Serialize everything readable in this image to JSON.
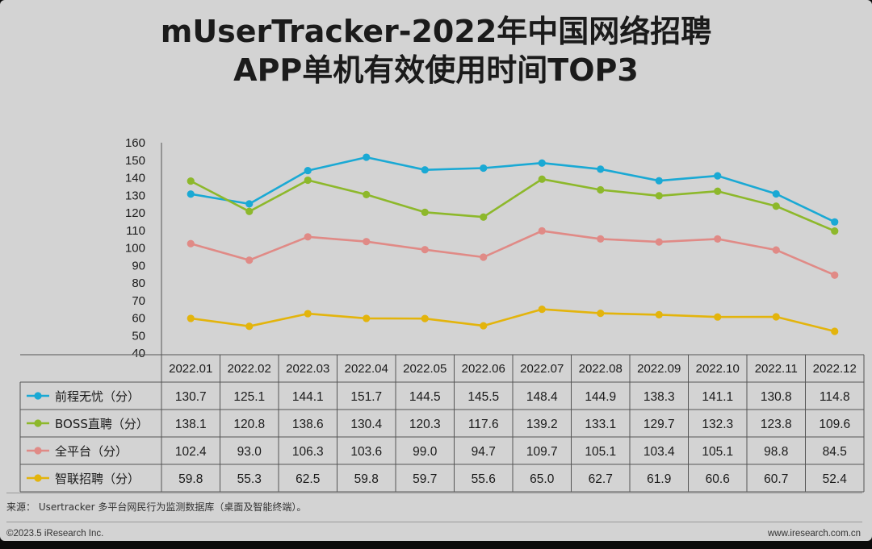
{
  "title_line1": "mUserTracker-2022年中国网络招聘",
  "title_line2": "APP单机有效使用时间TOP3",
  "source": "来源： Usertracker 多平台网民行为监测数据库（桌面及智能终端）。",
  "footer_left": "©2023.5 iResearch Inc.",
  "footer_right": "www.iresearch.com.cn",
  "chart_data": {
    "type": "line",
    "title": "mUserTracker-2022年中国网络招聘APP单机有效使用时间TOP3",
    "xlabel": "",
    "ylabel": "",
    "ylim": [
      40,
      160
    ],
    "y_ticks": [
      40,
      50,
      60,
      70,
      80,
      90,
      100,
      110,
      120,
      130,
      140,
      150,
      160
    ],
    "grid": false,
    "legend_placement": "data-table-left",
    "categories": [
      "2022.01",
      "2022.02",
      "2022.03",
      "2022.04",
      "2022.05",
      "2022.06",
      "2022.07",
      "2022.08",
      "2022.09",
      "2022.10",
      "2022.11",
      "2022.12"
    ],
    "series": [
      {
        "name": "前程无忧（分）",
        "color": "#1aa9d4",
        "values": [
          130.7,
          125.1,
          144.1,
          151.7,
          144.5,
          145.5,
          148.4,
          144.9,
          138.3,
          141.1,
          130.8,
          114.8
        ],
        "labels": [
          "130.7",
          "125.1",
          "144.1",
          "151.7",
          "144.5",
          "145.5",
          "148.4",
          "144.9",
          "138.3",
          "141.1",
          "130.8",
          "114.8"
        ]
      },
      {
        "name": "BOSS直聘（分）",
        "color": "#8db82b",
        "values": [
          138.1,
          120.8,
          138.6,
          130.4,
          120.3,
          117.6,
          139.2,
          133.1,
          129.7,
          132.3,
          123.8,
          109.6
        ],
        "labels": [
          "138.1",
          "120.8",
          "138.6",
          "130.4",
          "120.3",
          "117.6",
          "139.2",
          "133.1",
          "129.7",
          "132.3",
          "123.8",
          "109.6"
        ]
      },
      {
        "name": "全平台（分）",
        "color": "#e08a86",
        "values": [
          102.4,
          93.0,
          106.3,
          103.6,
          99.0,
          94.7,
          109.7,
          105.1,
          103.4,
          105.1,
          98.8,
          84.5
        ],
        "labels": [
          "102.4",
          "93.0",
          "106.3",
          "103.6",
          "99.0",
          "94.7",
          "109.7",
          "105.1",
          "103.4",
          "105.1",
          "98.8",
          "84.5"
        ]
      },
      {
        "name": "智联招聘（分）",
        "color": "#e3b40c",
        "values": [
          59.8,
          55.3,
          62.5,
          59.8,
          59.7,
          55.6,
          65.0,
          62.7,
          61.9,
          60.6,
          60.7,
          52.4
        ],
        "labels": [
          "59.8",
          "55.3",
          "62.5",
          "59.8",
          "59.7",
          "55.6",
          "65.0",
          "62.7",
          "61.9",
          "60.6",
          "60.7",
          "52.4"
        ]
      }
    ]
  }
}
